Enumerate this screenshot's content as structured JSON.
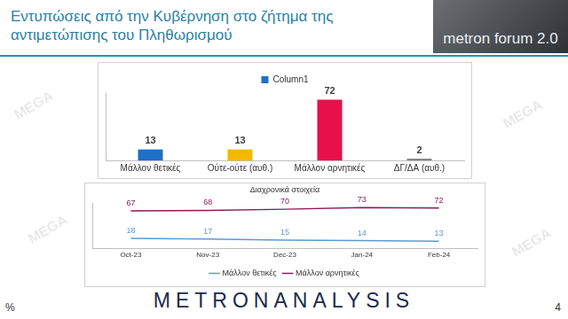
{
  "header": {
    "title": "Εντυπώσεις από την Κυβέρνηση στο ζήτημα της αντιμετώπισης του Πληθωρισμού",
    "logo": "metron forum 2.0"
  },
  "footer": "METRONANALYSIS",
  "unit": "%",
  "page": "4",
  "watermark": "MEGA",
  "chart_data": [
    {
      "type": "bar",
      "categories": [
        "Μάλλον θετικές",
        "Ούτε-ούτε (αυθ.)",
        "Μάλλον αρνητικές",
        "ΔΓ/ΔΑ (αυθ.)"
      ],
      "series": [
        {
          "name": "Column1",
          "values": [
            13,
            13,
            72,
            2
          ],
          "colors": [
            "#1f6fc5",
            "#f5b800",
            "#e8104a",
            "#7f7f7f"
          ]
        }
      ],
      "ylim": [
        0,
        80
      ],
      "grid": false,
      "legend": "top",
      "data_labels": true,
      "tick_labels": "x"
    },
    {
      "type": "line",
      "title": "Διαχρονικά στοιχεία",
      "categories": [
        "Oct-23",
        "Nov-23",
        "Dec-23",
        "Jan-24",
        "Feb-24"
      ],
      "series": [
        {
          "name": "Μάλλον θετικές",
          "color": "#5b9bd5",
          "values": [
            18,
            17,
            15,
            14,
            13
          ],
          "marker": "none",
          "line_style": "solid"
        },
        {
          "name": "Μάλλον αρνητικές",
          "color": "#8e1a5a",
          "values": [
            67,
            68,
            70,
            73,
            72
          ],
          "marker": "none",
          "line_style": "solid"
        }
      ],
      "ylim": [
        0,
        80
      ],
      "grid": false,
      "legend": "bottom",
      "data_labels": true,
      "tick_labels": "x"
    }
  ]
}
